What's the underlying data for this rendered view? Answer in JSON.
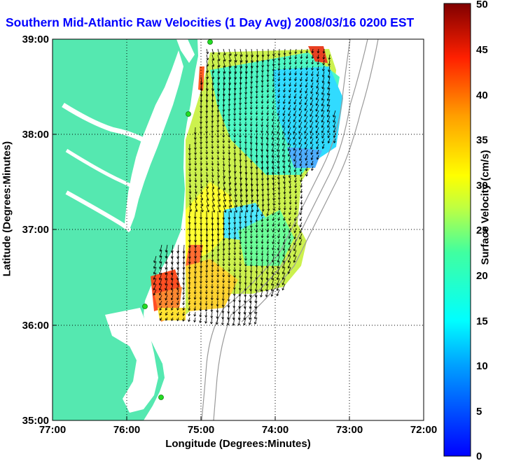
{
  "title": "Southern Mid-Atlantic Raw Velocities (1 Day Avg) 2008/03/16 0200 EST",
  "x_axis": {
    "label": "Longitude (Degrees:Minutes)",
    "ticks": [
      "77:00",
      "76:00",
      "75:00",
      "74:00",
      "73:00",
      "72:00"
    ]
  },
  "y_axis": {
    "label": "Latitude (Degrees:Minutes)",
    "ticks": [
      "39:00",
      "38:00",
      "37:00",
      "36:00",
      "35:00"
    ]
  },
  "colorbar": {
    "label": "Surface Velocity (cm/s)",
    "ticks": [
      "50",
      "45",
      "40",
      "35",
      "30",
      "25",
      "20",
      "15",
      "10",
      "5",
      "0"
    ],
    "range": [
      0,
      50
    ],
    "colormap": "jet"
  },
  "map": {
    "lon_range": [
      -77,
      -72
    ],
    "lat_range": [
      35,
      39
    ],
    "grid": "dotted",
    "land_color": "#55e8b0",
    "arrow_color": "#000000",
    "station_color": "#22dd22"
  }
}
